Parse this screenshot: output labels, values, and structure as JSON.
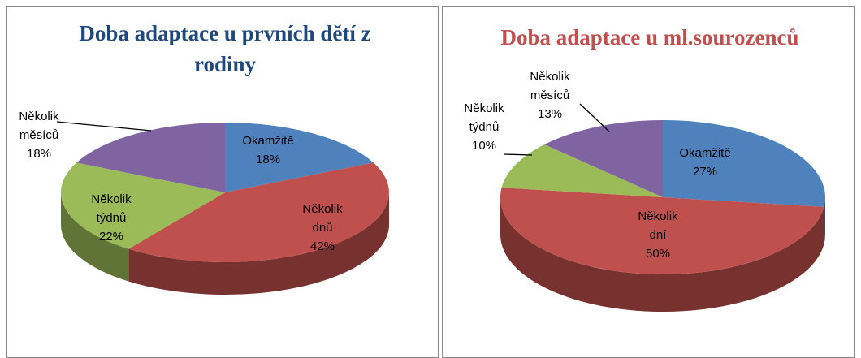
{
  "chart_data": [
    {
      "type": "pie",
      "title": "Doba adaptace u prvních dětí z rodiny",
      "title_color": "#1f497d",
      "categories": [
        "Okamžitě",
        "Několik dnů",
        "Několik týdnů",
        "Několik měsíců"
      ],
      "values": [
        18,
        42,
        22,
        18
      ],
      "value_labels": [
        "18%",
        "42%",
        "22%",
        "18%"
      ],
      "colors": [
        "#4f81bd",
        "#c0504d",
        "#9bbb59",
        "#8064a2"
      ]
    },
    {
      "type": "pie",
      "title": "Doba adaptace u ml.sourozenců",
      "title_color": "#c0504d",
      "categories": [
        "Okamžitě",
        "Několik dní",
        "Několik týdnů",
        "Několik měsíců"
      ],
      "values": [
        27,
        50,
        10,
        13
      ],
      "value_labels": [
        "27%",
        "50%",
        "10%",
        "13%"
      ],
      "colors": [
        "#4f81bd",
        "#c0504d",
        "#9bbb59",
        "#8064a2"
      ]
    }
  ]
}
